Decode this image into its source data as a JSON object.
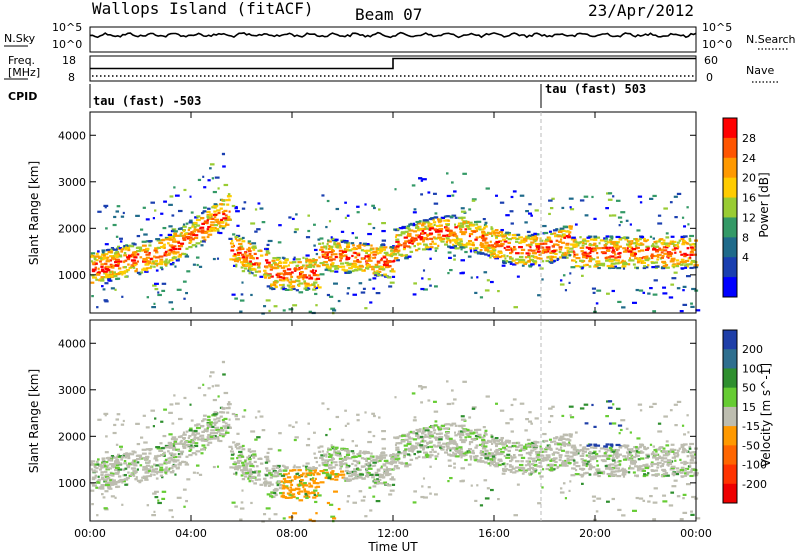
{
  "header": {
    "station": "Wallops Island (fitACF)",
    "beam": "Beam 07",
    "date": "23/Apr/2012"
  },
  "noise_panel": {
    "left_label": "N.Sky",
    "left_tick_top": "10^5",
    "left_tick_bottom": "10^0",
    "right_label": "N.Search",
    "right_tick_top": "10^5",
    "right_tick_bottom": "10^0"
  },
  "freq_panel": {
    "left_label_line1": "Freq.",
    "left_label_line2": "[MHz]",
    "left_tick_top": "18",
    "left_tick_bottom": "8",
    "right_label": "Nave",
    "right_tick_top": "60",
    "right_tick_bottom": "0"
  },
  "cpid_panel": {
    "label": "CPID",
    "segment1": "tau (fast) -503",
    "segment2": "tau (fast) 503"
  },
  "power_panel": {
    "ylabel": "Slant Range [km]",
    "colorbar_label": "Power [dB]",
    "colorbar_ticks": [
      "28",
      "24",
      "20",
      "16",
      "12",
      "8",
      "4"
    ],
    "colorbar_colors": [
      "#ff0000",
      "#ff5500",
      "#ff9900",
      "#ffcc00",
      "#99cc33",
      "#339966",
      "#1f6a8a",
      "#1a3fb0",
      "#0000ff"
    ]
  },
  "velocity_panel": {
    "ylabel": "Slant Range [km]",
    "colorbar_label": "Velocity [m s^-1]",
    "colorbar_ticks": [
      "200",
      "100",
      "50",
      "15",
      "-15",
      "-50",
      "-100",
      "-200"
    ],
    "colorbar_colors": [
      "#1f3fa8",
      "#2f6f8f",
      "#2f8f2f",
      "#66cc33",
      "#bdbdb0",
      "#ff9900",
      "#ff6600",
      "#ff3300",
      "#ee0000"
    ]
  },
  "x_axis": {
    "label": "Time UT",
    "ticks": [
      "00:00",
      "04:00",
      "08:00",
      "12:00",
      "16:00",
      "20:00",
      "00:00"
    ]
  },
  "chart_data": [
    {
      "type": "line",
      "title": "N.Sky",
      "x": [
        "00:00",
        "24:00"
      ],
      "ylim": [
        "10^0",
        "10^5"
      ]
    },
    {
      "type": "line",
      "title": "Freq. [MHz]",
      "x": [
        0,
        12,
        24
      ],
      "series": [
        {
          "name": "Freq. [MHz]",
          "values": [
            [
              0,
              13
            ],
            [
              12,
              13
            ],
            [
              12,
              17
            ],
            [
              24,
              17
            ]
          ]
        }
      ],
      "ylim": [
        8,
        18
      ]
    },
    {
      "type": "heatmap",
      "title": "Power [dB]",
      "xlabel": "Time UT",
      "ylabel": "Slant Range [km]",
      "xlim": [
        0,
        24
      ],
      "ylim": [
        180,
        4500
      ],
      "yticks": [
        1000,
        2000,
        3000,
        4000
      ],
      "colorbar_ticks": [
        4,
        8,
        12,
        16,
        20,
        24,
        28
      ]
    },
    {
      "type": "heatmap",
      "title": "Velocity [m s^-1]",
      "xlabel": "Time UT",
      "ylabel": "Slant Range [km]",
      "xlim": [
        0,
        24
      ],
      "ylim": [
        180,
        4500
      ],
      "yticks": [
        1000,
        2000,
        3000,
        4000
      ],
      "colorbar_ticks": [
        -200,
        -100,
        -50,
        -15,
        15,
        50,
        100,
        200
      ]
    }
  ]
}
